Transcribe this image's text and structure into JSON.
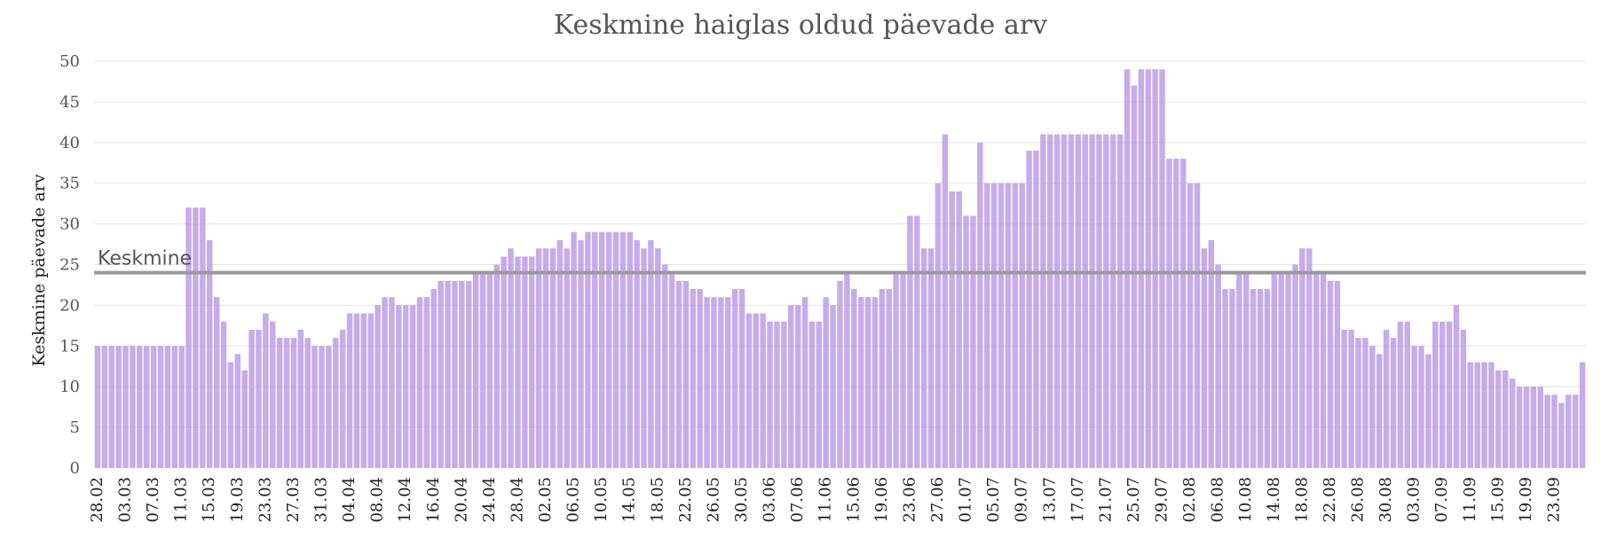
{
  "chart_data": {
    "type": "bar",
    "title": "Keskmine haiglas oldud päevade arv",
    "xlabel": "",
    "ylabel": "Keskmine päevade arv",
    "ylim": [
      0,
      50
    ],
    "yticks": [
      0,
      5,
      10,
      15,
      20,
      25,
      30,
      35,
      40,
      45,
      50
    ],
    "grid": true,
    "bar_color": "#bb9ee6",
    "reference_line": {
      "label": "Keskmine",
      "value": 24,
      "color": "#999999"
    },
    "x_tick_labels": [
      "28.02",
      "03.03",
      "07.03",
      "11.03",
      "15.03",
      "19.03",
      "23.03",
      "27.03",
      "31.03",
      "04.04",
      "08.04",
      "12.04",
      "16.04",
      "20.04",
      "24.04",
      "28.04",
      "02.05",
      "06.05",
      "10.05",
      "14.05",
      "18.05",
      "22.05",
      "26.05",
      "30.05",
      "03.06",
      "07.06",
      "11.06",
      "15.06",
      "19.06",
      "23.06",
      "27.06",
      "01.07",
      "05.07",
      "09.07",
      "13.07",
      "17.07",
      "21.07",
      "25.07",
      "29.07",
      "02.08",
      "06.08",
      "10.08",
      "14.08",
      "18.08",
      "22.08",
      "26.08",
      "30.08",
      "03.09",
      "07.09",
      "11.09",
      "15.09",
      "19.09",
      "23.09"
    ],
    "first_date": "28.02",
    "days_per_tick": 4,
    "values": [
      15,
      15,
      15,
      15,
      15,
      15,
      15,
      15,
      15,
      15,
      15,
      15,
      15,
      32,
      32,
      32,
      28,
      21,
      18,
      13,
      14,
      12,
      17,
      17,
      19,
      18,
      16,
      16,
      16,
      17,
      16,
      15,
      15,
      15,
      16,
      17,
      19,
      19,
      19,
      19,
      20,
      21,
      21,
      20,
      20,
      20,
      21,
      21,
      22,
      23,
      23,
      23,
      23,
      23,
      24,
      24,
      24,
      25,
      26,
      27,
      26,
      26,
      26,
      27,
      27,
      27,
      28,
      27,
      29,
      28,
      29,
      29,
      29,
      29,
      29,
      29,
      29,
      28,
      27,
      28,
      27,
      25,
      24,
      23,
      23,
      22,
      22,
      21,
      21,
      21,
      21,
      22,
      22,
      19,
      19,
      19,
      18,
      18,
      18,
      20,
      20,
      21,
      18,
      18,
      21,
      20,
      23,
      24,
      22,
      21,
      21,
      21,
      22,
      22,
      24,
      24,
      31,
      31,
      27,
      27,
      35,
      41,
      34,
      34,
      31,
      31,
      40,
      35,
      35,
      35,
      35,
      35,
      35,
      39,
      39,
      41,
      41,
      41,
      41,
      41,
      41,
      41,
      41,
      41,
      41,
      41,
      41,
      49,
      47,
      49,
      49,
      49,
      49,
      38,
      38,
      38,
      35,
      35,
      27,
      28,
      25,
      22,
      22,
      24,
      24,
      22,
      22,
      22,
      24,
      24,
      24,
      25,
      27,
      27,
      24,
      24,
      23,
      23,
      17,
      17,
      16,
      16,
      15,
      14,
      17,
      16,
      18,
      18,
      15,
      15,
      14,
      18,
      18,
      18,
      20,
      17,
      13,
      13,
      13,
      13,
      12,
      12,
      11,
      10,
      10,
      10,
      10,
      9,
      9,
      8,
      9,
      9,
      13
    ]
  }
}
